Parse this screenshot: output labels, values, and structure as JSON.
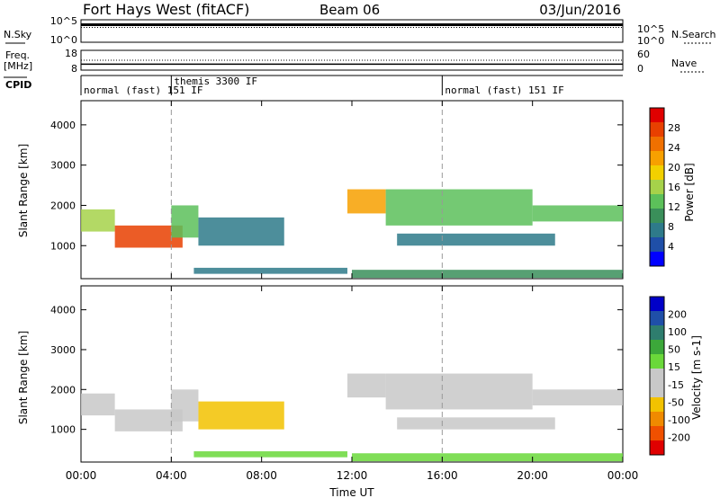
{
  "chart_data": {
    "type": "heatmap",
    "header": {
      "station": "Fort Hays West (fitACF)",
      "beam": "Beam 06",
      "date": "03/Jun/2016"
    },
    "noise_panel": {
      "left_label": "N.Sky",
      "right_label": "N.Search",
      "left_ticks": [
        "10^5",
        "10^0"
      ],
      "right_ticks": [
        "10^5",
        "10^0"
      ],
      "level_log10": 3.9
    },
    "freq_panel": {
      "left_label_1": "Freq.",
      "left_label_2": "[MHz]",
      "right_label": "Nave",
      "left_ticks": [
        "18",
        "8"
      ],
      "right_ticks": [
        "60",
        "0"
      ],
      "freq_mhz": 11.0,
      "nave": 30,
      "ylim_freq": [
        8,
        18
      ],
      "ylim_nave": [
        0,
        60
      ]
    },
    "cpid": {
      "label": "CPID",
      "segments": [
        {
          "start_h": 0.0,
          "end_h": 4.0,
          "text": "normal (fast)  151  IF"
        },
        {
          "start_h": 4.0,
          "end_h": 16.0,
          "text": "themis  3300  IF"
        },
        {
          "start_h": 16.0,
          "end_h": 24.0,
          "text": "normal (fast)  151  IF"
        }
      ]
    },
    "x_axis": {
      "label": "Time UT",
      "ticks": [
        "00:00",
        "04:00",
        "08:00",
        "12:00",
        "16:00",
        "20:00",
        "00:00"
      ],
      "range_h": [
        0,
        24
      ]
    },
    "y_axis": {
      "label": "Slant Range [km]",
      "ticks": [
        1000,
        2000,
        3000,
        4000
      ],
      "range_km": [
        180,
        4600
      ]
    },
    "vertical_markers_h": [
      4.0,
      16.0
    ],
    "power_panel": {
      "colorbar_label": "Power [dB]",
      "colorbar_ticks": [
        4,
        8,
        12,
        16,
        20,
        24,
        28
      ],
      "range_db": [
        0,
        30
      ],
      "colors": [
        "#0000ff",
        "#1f4fa8",
        "#2e7a8a",
        "#3a8f5a",
        "#5cc05a",
        "#a6d24a",
        "#f2d000",
        "#f7a000",
        "#f07000",
        "#e84000",
        "#e00000"
      ]
    },
    "velocity_panel": {
      "colorbar_label": "Velocity [m s-1]",
      "colorbar_ticks": [
        200,
        100,
        50,
        15,
        -15,
        -50,
        -100,
        -200
      ],
      "range_ms": [
        -250,
        250
      ],
      "colors": [
        "#e00000",
        "#f05000",
        "#f08a00",
        "#f2c200",
        "#c8c8c8",
        "#c8c8c8",
        "#6ad83a",
        "#3ca83a",
        "#2e7d6e",
        "#1f4fa8",
        "#0000c8"
      ]
    },
    "echo_regions": [
      {
        "t0": 0.0,
        "t1": 1.5,
        "r0": 1350,
        "r1": 1900,
        "power_db": 14,
        "velocity_ms": 0
      },
      {
        "t0": 1.5,
        "t1": 4.5,
        "r0": 950,
        "r1": 1500,
        "power_db": 26,
        "velocity_ms": -5
      },
      {
        "t0": 4.0,
        "t1": 5.2,
        "r0": 1200,
        "r1": 2000,
        "power_db": 12,
        "velocity_ms": -10
      },
      {
        "t0": 5.2,
        "t1": 9.0,
        "r0": 1000,
        "r1": 1700,
        "power_db": 6,
        "velocity_ms": -80
      },
      {
        "t0": 5.0,
        "t1": 11.8,
        "r0": 300,
        "r1": 450,
        "power_db": 7,
        "velocity_ms": 30
      },
      {
        "t0": 11.8,
        "t1": 13.5,
        "r0": 1800,
        "r1": 2400,
        "power_db": 20,
        "velocity_ms": 0
      },
      {
        "t0": 13.5,
        "t1": 20.0,
        "r0": 1500,
        "r1": 2400,
        "power_db": 12,
        "velocity_ms": 5
      },
      {
        "t0": 20.0,
        "t1": 24.0,
        "r0": 1600,
        "r1": 2000,
        "power_db": 12,
        "velocity_ms": 0
      },
      {
        "t0": 14.0,
        "t1": 21.0,
        "r0": 1000,
        "r1": 1300,
        "power_db": 8,
        "velocity_ms": 0
      },
      {
        "t0": 12.0,
        "t1": 24.0,
        "r0": 200,
        "r1": 400,
        "power_db": 9,
        "velocity_ms": 40
      }
    ]
  }
}
